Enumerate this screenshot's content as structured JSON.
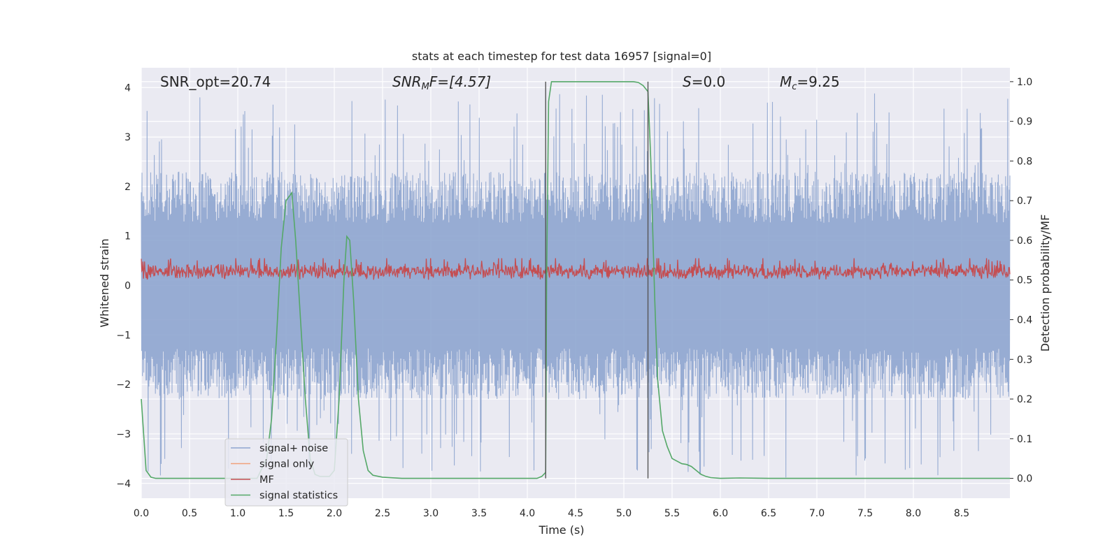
{
  "chart_data": {
    "type": "line",
    "title": "stats at each timestep for test data 16957 [signal=0]",
    "xlabel": "Time (s)",
    "ylabel_left": "Whitened strain",
    "ylabel_right": "Detection probability/MF",
    "xlim": [
      0.0,
      9.0
    ],
    "ylim_left": [
      -4.3,
      4.4
    ],
    "ylim_right": [
      -0.05,
      1.035
    ],
    "x_ticks": [
      "0.0",
      "0.5",
      "1.0",
      "1.5",
      "2.0",
      "2.5",
      "3.0",
      "3.5",
      "4.0",
      "4.5",
      "5.0",
      "5.5",
      "6.0",
      "6.5",
      "7.0",
      "7.5",
      "8.0",
      "8.5"
    ],
    "y_ticks_left": [
      "−4",
      "−3",
      "−2",
      "−1",
      "0",
      "1",
      "2",
      "3",
      "4"
    ],
    "y_ticks_right": [
      "0.0",
      "0.1",
      "0.2",
      "0.3",
      "0.4",
      "0.5",
      "0.6",
      "0.7",
      "0.8",
      "0.9",
      "1.0"
    ],
    "annotations": {
      "snr_opt": "SNR_opt=20.74",
      "snr_mf_main": "SNR",
      "snr_mf_sub": "M",
      "snr_mf_rest": "F=[4.57]",
      "s_italic": "S",
      "s_rest": "=0.0",
      "mc_italic": "M",
      "mc_sub": "c",
      "mc_rest": "=9.25"
    },
    "vlines_s": [
      4.19,
      5.25
    ],
    "legend": {
      "position": "lower-left",
      "entries": [
        {
          "label": "signal+ noise",
          "color": "#8ea5cf"
        },
        {
          "label": "signal only",
          "color": "#f0a07a"
        },
        {
          "label": "MF",
          "color": "#c44e52"
        },
        {
          "label": "signal statistics",
          "color": "#55a868"
        }
      ]
    },
    "series": [
      {
        "name": "signal+ noise",
        "axis": "left",
        "color": "#8ea5cf",
        "description": "whitened noise, roughly symmetric, envelope about +/-2.3 with spikes to about +/-3.9",
        "envelope": 2.3,
        "peak_max": 3.9
      },
      {
        "name": "signal only",
        "axis": "left",
        "color": "#f0a07a",
        "values": []
      },
      {
        "name": "MF",
        "axis": "right",
        "color": "#c44e52",
        "description": "matched filter output, between about 0.49 and 0.55",
        "range": [
          0.49,
          0.555
        ]
      },
      {
        "name": "signal statistics",
        "axis": "right",
        "color": "#55a868",
        "x": [
          0.0,
          0.05,
          0.1,
          0.15,
          0.2,
          0.3,
          0.5,
          0.8,
          1.0,
          1.2,
          1.3,
          1.35,
          1.4,
          1.45,
          1.5,
          1.56,
          1.6,
          1.65,
          1.7,
          1.75,
          1.8,
          1.85,
          1.9,
          1.95,
          2.0,
          2.05,
          2.1,
          2.13,
          2.16,
          2.2,
          2.25,
          2.3,
          2.35,
          2.4,
          2.5,
          2.7,
          3.0,
          3.5,
          4.0,
          4.1,
          4.15,
          4.19,
          4.2,
          4.22,
          4.25,
          4.3,
          4.5,
          4.8,
          5.0,
          5.1,
          5.15,
          5.2,
          5.25,
          5.28,
          5.3,
          5.32,
          5.35,
          5.4,
          5.45,
          5.5,
          5.6,
          5.65,
          5.7,
          5.75,
          5.8,
          5.85,
          5.9,
          6.0,
          6.2,
          6.5,
          7.0,
          8.0,
          8.5,
          9.0
        ],
        "values": [
          0.2,
          0.02,
          0.003,
          0.0,
          0.0,
          0.0,
          0.0,
          0.0,
          0.0,
          0.0,
          0.05,
          0.15,
          0.35,
          0.58,
          0.7,
          0.72,
          0.6,
          0.4,
          0.2,
          0.05,
          0.01,
          0.005,
          0.005,
          0.005,
          0.02,
          0.2,
          0.5,
          0.61,
          0.6,
          0.45,
          0.2,
          0.07,
          0.02,
          0.008,
          0.003,
          0.0,
          0.0,
          0.0,
          0.0,
          0.0,
          0.005,
          0.015,
          0.5,
          0.95,
          1.0,
          1.0,
          1.0,
          1.0,
          1.0,
          1.0,
          0.998,
          0.99,
          0.975,
          0.8,
          0.62,
          0.45,
          0.25,
          0.12,
          0.08,
          0.05,
          0.037,
          0.035,
          0.03,
          0.02,
          0.01,
          0.005,
          0.002,
          0.0,
          0.001,
          0.0,
          0.0,
          0.0,
          0.0,
          0.0
        ]
      }
    ]
  }
}
